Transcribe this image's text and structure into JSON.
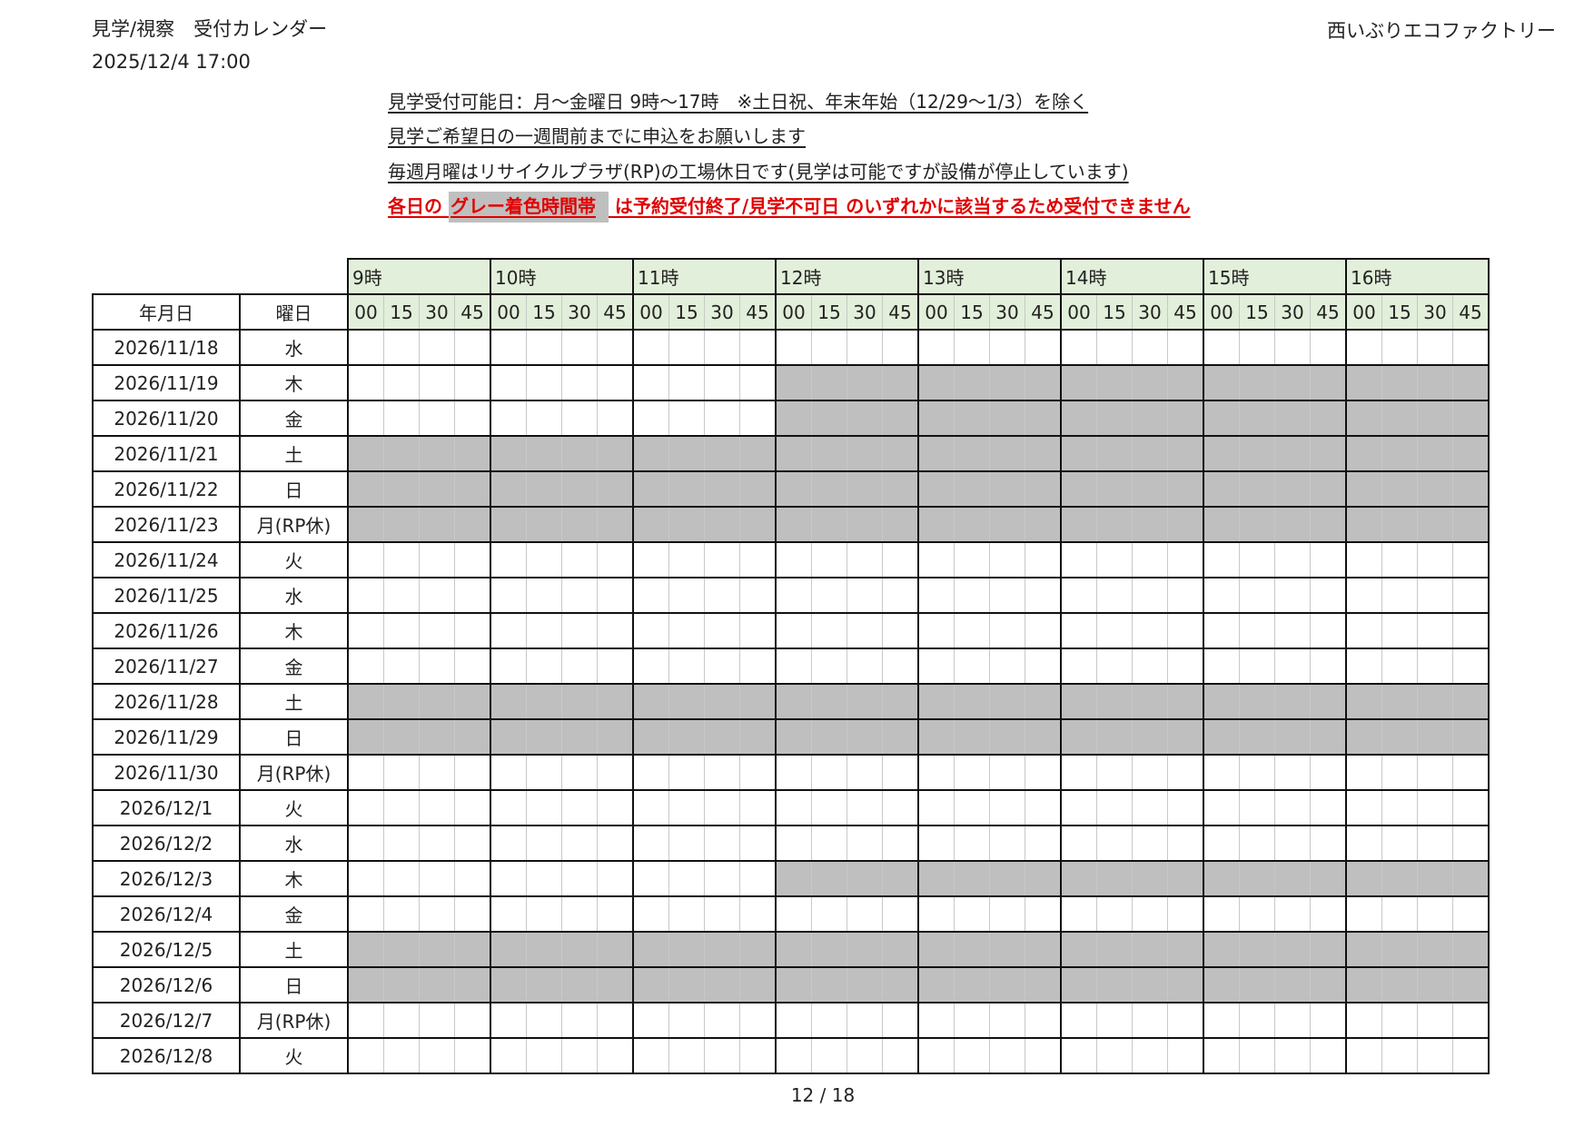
{
  "header": {
    "title": "見学/視察　受付カレンダー",
    "printed_at": "2025/12/4  17:00",
    "organization": "西いぶりエコファクトリー"
  },
  "notes": {
    "line1": "見学受付可能日：月～金曜日 9時～17時　※土日祝、年末年始（12/29～1/3）を除く",
    "line2": "見学ご希望日の一週間前までに申込をお願いします",
    "line3": "毎週月曜はリサイクルプラザ(RP)の工場休日です(見学は可能ですが設備が停止しています)",
    "line4_pre": "各日の ",
    "line4_highlight": "グレー着色時間帯",
    "line4_post": " は予約受付終了/見学不可日 のいずれかに該当するため受付できません"
  },
  "colors": {
    "unavailable": "#bfbfbf",
    "header_bg": "#e2efda",
    "warning_text": "#e00000"
  },
  "table": {
    "date_header": "年月日",
    "weekday_header": "曜日",
    "hours": [
      "9時",
      "10時",
      "11時",
      "12時",
      "13時",
      "14時",
      "15時",
      "16時"
    ],
    "minutes": [
      "00",
      "15",
      "30",
      "45"
    ],
    "rows": [
      {
        "date": "2026/11/18",
        "weekday": "水",
        "unavailable_from": null
      },
      {
        "date": "2026/11/19",
        "weekday": "木",
        "unavailable_from": "12:00"
      },
      {
        "date": "2026/11/20",
        "weekday": "金",
        "unavailable_from": "12:00"
      },
      {
        "date": "2026/11/21",
        "weekday": "土",
        "unavailable_from": "9:00"
      },
      {
        "date": "2026/11/22",
        "weekday": "日",
        "unavailable_from": "9:00"
      },
      {
        "date": "2026/11/23",
        "weekday": "月(RP休)",
        "unavailable_from": "9:00"
      },
      {
        "date": "2026/11/24",
        "weekday": "火",
        "unavailable_from": null
      },
      {
        "date": "2026/11/25",
        "weekday": "水",
        "unavailable_from": null
      },
      {
        "date": "2026/11/26",
        "weekday": "木",
        "unavailable_from": null
      },
      {
        "date": "2026/11/27",
        "weekday": "金",
        "unavailable_from": null
      },
      {
        "date": "2026/11/28",
        "weekday": "土",
        "unavailable_from": "9:00"
      },
      {
        "date": "2026/11/29",
        "weekday": "日",
        "unavailable_from": "9:00"
      },
      {
        "date": "2026/11/30",
        "weekday": "月(RP休)",
        "unavailable_from": null
      },
      {
        "date": "2026/12/1",
        "weekday": "火",
        "unavailable_from": null
      },
      {
        "date": "2026/12/2",
        "weekday": "水",
        "unavailable_from": null
      },
      {
        "date": "2026/12/3",
        "weekday": "木",
        "unavailable_from": "12:00"
      },
      {
        "date": "2026/12/4",
        "weekday": "金",
        "unavailable_from": null
      },
      {
        "date": "2026/12/5",
        "weekday": "土",
        "unavailable_from": "9:00"
      },
      {
        "date": "2026/12/6",
        "weekday": "日",
        "unavailable_from": "9:00"
      },
      {
        "date": "2026/12/7",
        "weekday": "月(RP休)",
        "unavailable_from": null
      },
      {
        "date": "2026/12/8",
        "weekday": "火",
        "unavailable_from": null
      }
    ]
  },
  "footer": {
    "page": "12 / 18"
  }
}
